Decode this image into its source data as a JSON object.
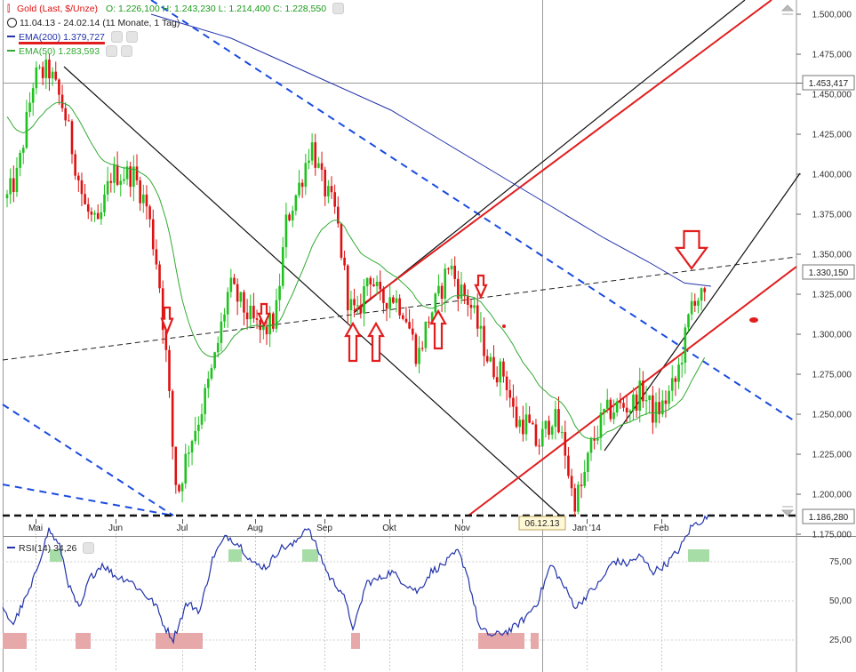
{
  "legend": {
    "instrument": "Gold (Last, $/Unze)",
    "ohlc": "O: 1.226,100  H: 1.243,230  L: 1.214,400  C: 1.228,550",
    "range": "11.04.13 - 24.02.14 (11 Monate, 1 Tag)",
    "ema200": "EMA(200)  1.379,727",
    "ema50": "EMA(50)  1.283,593",
    "rsi": "RSI(14)  34,26"
  },
  "price_axis": {
    "ticks": [
      "1.500,000",
      "1.475,000",
      "1.450,000",
      "1.425,000",
      "1.400,000",
      "1.375,000",
      "1.350,000",
      "1.325,000",
      "1.300,000",
      "1.275,000",
      "1.250,000",
      "1.225,000",
      "1.200,000",
      "1.175,000"
    ],
    "markers": [
      "1.453,417",
      "1.330,150",
      "1.186,280"
    ]
  },
  "rsi_axis": {
    "ticks": [
      "75,00",
      "50,00",
      "25,00"
    ]
  },
  "x_axis": {
    "months": [
      "Mai",
      "Jun",
      "Jul",
      "Aug",
      "Sep",
      "Okt",
      "Nov",
      "Jan '14",
      "Feb"
    ],
    "cursor_label": "06.12.13"
  },
  "colors": {
    "up": "#1fc21f",
    "down": "#dd1111",
    "ema200": "#2233aa",
    "ema50": "#33aa33",
    "annotation": "#e11d1d",
    "trend_dashed": "#1a4be0",
    "rsi_line": "#2233aa",
    "rsi_high_fill": "#a6dda6",
    "rsi_low_fill": "#e6a8a8"
  },
  "chart_data": {
    "type": "candlestick",
    "title": "Gold (Last, $/Unze)",
    "period": "11.04.13 - 24.02.14",
    "interval": "1 Tag",
    "y_range": [
      1175,
      1505
    ],
    "last_bar": {
      "open": 1226.1,
      "high": 1243.23,
      "low": 1214.4,
      "close": 1228.55
    },
    "indicators": [
      {
        "name": "EMA(200)",
        "value": 1379.727
      },
      {
        "name": "EMA(50)",
        "value": 1283.593
      },
      {
        "name": "RSI(14)",
        "value": 34.26,
        "range": [
          0,
          100
        ],
        "levels": [
          25,
          50,
          75
        ]
      }
    ],
    "price_markers": [
      1453.417,
      1330.15,
      1186.28
    ],
    "months": [
      "Mai",
      "Jun",
      "Jul",
      "Aug",
      "Sep",
      "Okt",
      "Nov",
      "Jan '14",
      "Feb"
    ],
    "approx_closes": [
      [
        "Mai",
        1460
      ],
      [
        "Jun",
        1395
      ],
      [
        "Jul",
        1245
      ],
      [
        "Aug",
        1310
      ],
      [
        "Sep",
        1395
      ],
      [
        "Okt",
        1320
      ],
      [
        "Nov",
        1320
      ],
      [
        "Jan '14",
        1205
      ],
      [
        "Feb",
        1265
      ]
    ]
  }
}
